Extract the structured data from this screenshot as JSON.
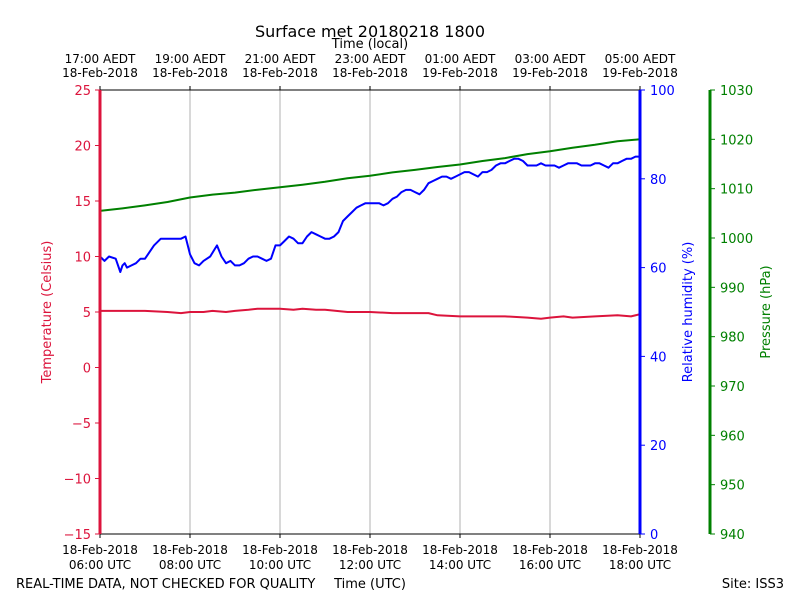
{
  "chart_data": {
    "type": "line",
    "title": "Surface met 20180218 1800",
    "top_axis_label": "Time (local)",
    "xlabel": "Time (UTC)",
    "footer_left": "REAL-TIME DATA, NOT CHECKED FOR QUALITY",
    "footer_right": "Site: ISS3",
    "x_range_hours": [
      6,
      18
    ],
    "x_ticks": [
      6,
      8,
      10,
      12,
      14,
      16,
      18
    ],
    "bottom_tick_labels": [
      {
        "date": "18-Feb-2018",
        "time": "06:00 UTC"
      },
      {
        "date": "18-Feb-2018",
        "time": "08:00 UTC"
      },
      {
        "date": "18-Feb-2018",
        "time": "10:00 UTC"
      },
      {
        "date": "18-Feb-2018",
        "time": "12:00 UTC"
      },
      {
        "date": "18-Feb-2018",
        "time": "14:00 UTC"
      },
      {
        "date": "18-Feb-2018",
        "time": "16:00 UTC"
      },
      {
        "date": "18-Feb-2018",
        "time": "18:00 UTC"
      }
    ],
    "top_tick_labels": [
      {
        "time": "17:00 AEDT",
        "date": "18-Feb-2018"
      },
      {
        "time": "19:00 AEDT",
        "date": "18-Feb-2018"
      },
      {
        "time": "21:00 AEDT",
        "date": "18-Feb-2018"
      },
      {
        "time": "23:00 AEDT",
        "date": "18-Feb-2018"
      },
      {
        "time": "01:00 AEDT",
        "date": "19-Feb-2018"
      },
      {
        "time": "03:00 AEDT",
        "date": "19-Feb-2018"
      },
      {
        "time": "05:00 AEDT",
        "date": "19-Feb-2018"
      }
    ],
    "temperature_axis": {
      "label": "Temperature (Celsius)",
      "range": [
        -15,
        25
      ],
      "ticks": [
        -15,
        -10,
        -5,
        0,
        5,
        10,
        15,
        20,
        25
      ],
      "tick_labels": [
        "−15",
        "−10",
        "−5",
        "0",
        "5",
        "10",
        "15",
        "20",
        "25"
      ],
      "color": "#dc143c"
    },
    "humidity_axis": {
      "label": "Relative humidity (%)",
      "range": [
        0,
        100
      ],
      "ticks": [
        0,
        20,
        40,
        60,
        80,
        100
      ],
      "tick_labels": [
        "0",
        "20",
        "40",
        "60",
        "80",
        "100"
      ],
      "color": "#0000ff"
    },
    "pressure_axis": {
      "label": "Pressure (hPa)",
      "range": [
        940,
        1030
      ],
      "ticks": [
        940,
        950,
        960,
        970,
        980,
        990,
        1000,
        1010,
        1020,
        1030
      ],
      "tick_labels": [
        "940",
        "950",
        "960",
        "970",
        "980",
        "990",
        "1000",
        "1010",
        "1020",
        "1030"
      ],
      "color": "#008000"
    },
    "series": [
      {
        "name": "Temperature",
        "axis": "temperature",
        "color": "#dc143c",
        "x": [
          6.0,
          6.5,
          7.0,
          7.5,
          7.8,
          8.0,
          8.3,
          8.5,
          8.8,
          9.0,
          9.3,
          9.5,
          9.8,
          10.0,
          10.3,
          10.5,
          10.8,
          11.0,
          11.5,
          12.0,
          12.5,
          13.0,
          13.3,
          13.5,
          14.0,
          14.5,
          15.0,
          15.5,
          15.8,
          16.0,
          16.3,
          16.5,
          17.0,
          17.5,
          17.8,
          18.0
        ],
        "values": [
          5.1,
          5.1,
          5.1,
          5.0,
          4.9,
          5.0,
          5.0,
          5.1,
          5.0,
          5.1,
          5.2,
          5.3,
          5.3,
          5.3,
          5.2,
          5.3,
          5.2,
          5.2,
          5.0,
          5.0,
          4.9,
          4.9,
          4.9,
          4.7,
          4.6,
          4.6,
          4.6,
          4.5,
          4.4,
          4.5,
          4.6,
          4.5,
          4.6,
          4.7,
          4.6,
          4.8
        ]
      },
      {
        "name": "Relative humidity",
        "axis": "humidity",
        "color": "#0000ff",
        "x": [
          6.0,
          6.1,
          6.2,
          6.35,
          6.45,
          6.5,
          6.55,
          6.6,
          6.7,
          6.8,
          6.9,
          7.0,
          7.1,
          7.2,
          7.35,
          7.5,
          7.6,
          7.7,
          7.8,
          7.9,
          8.0,
          8.1,
          8.2,
          8.3,
          8.45,
          8.6,
          8.7,
          8.8,
          8.9,
          9.0,
          9.1,
          9.2,
          9.3,
          9.4,
          9.5,
          9.6,
          9.7,
          9.8,
          9.9,
          10.0,
          10.1,
          10.2,
          10.3,
          10.4,
          10.5,
          10.6,
          10.7,
          10.8,
          10.9,
          11.0,
          11.1,
          11.2,
          11.3,
          11.4,
          11.5,
          11.6,
          11.7,
          11.8,
          11.9,
          12.0,
          12.1,
          12.2,
          12.3,
          12.4,
          12.5,
          12.6,
          12.7,
          12.8,
          12.9,
          13.0,
          13.1,
          13.2,
          13.3,
          13.4,
          13.5,
          13.6,
          13.7,
          13.8,
          13.9,
          14.0,
          14.1,
          14.2,
          14.3,
          14.4,
          14.5,
          14.6,
          14.7,
          14.8,
          14.9,
          15.0,
          15.1,
          15.2,
          15.3,
          15.4,
          15.5,
          15.6,
          15.7,
          15.8,
          15.9,
          16.0,
          16.1,
          16.2,
          16.3,
          16.4,
          16.5,
          16.6,
          16.7,
          16.8,
          16.9,
          17.0,
          17.1,
          17.2,
          17.3,
          17.4,
          17.5,
          17.6,
          17.7,
          17.8,
          17.9,
          18.0
        ],
        "values": [
          62.5,
          61.5,
          62.5,
          62,
          59,
          60.5,
          61,
          60,
          60.5,
          61,
          62,
          62,
          63.5,
          65,
          66.5,
          66.5,
          66.5,
          66.5,
          66.5,
          67,
          63,
          61,
          60.5,
          61.5,
          62.5,
          65,
          62.5,
          61,
          61.5,
          60.5,
          60.5,
          61,
          62,
          62.5,
          62.5,
          62,
          61.5,
          62,
          65,
          65,
          66,
          67,
          66.5,
          65.5,
          65.5,
          67,
          68,
          67.5,
          67,
          66.5,
          66.5,
          67,
          68,
          70.5,
          71.5,
          72.5,
          73.5,
          74,
          74.5,
          74.5,
          74.5,
          74.5,
          74,
          74.5,
          75.5,
          76,
          77,
          77.5,
          77.5,
          77,
          76.5,
          77.5,
          79,
          79.5,
          80,
          80.5,
          80.5,
          80,
          80.5,
          81,
          81.5,
          81.5,
          81,
          80.5,
          81.5,
          81.5,
          82,
          83,
          83.5,
          83.5,
          84,
          84.5,
          84.5,
          84,
          83,
          83,
          83,
          83.5,
          83,
          83,
          83,
          82.5,
          83,
          83.5,
          83.5,
          83.5,
          83,
          83,
          83,
          83.5,
          83.5,
          83,
          82.5,
          83.5,
          83.5,
          84,
          84.5,
          84.5,
          85,
          85
        ]
      },
      {
        "name": "Pressure",
        "axis": "pressure",
        "color": "#008000",
        "x": [
          6.0,
          6.5,
          7.0,
          7.5,
          8.0,
          8.5,
          9.0,
          9.5,
          10.0,
          10.5,
          11.0,
          11.5,
          12.0,
          12.5,
          13.0,
          13.5,
          14.0,
          14.5,
          15.0,
          15.5,
          16.0,
          16.5,
          17.0,
          17.5,
          18.0
        ],
        "values": [
          1005.5,
          1006.0,
          1006.6,
          1007.3,
          1008.2,
          1008.8,
          1009.2,
          1009.8,
          1010.3,
          1010.8,
          1011.4,
          1012.1,
          1012.6,
          1013.3,
          1013.8,
          1014.4,
          1014.9,
          1015.6,
          1016.2,
          1017.0,
          1017.6,
          1018.3,
          1018.9,
          1019.6,
          1020.0
        ]
      }
    ]
  }
}
